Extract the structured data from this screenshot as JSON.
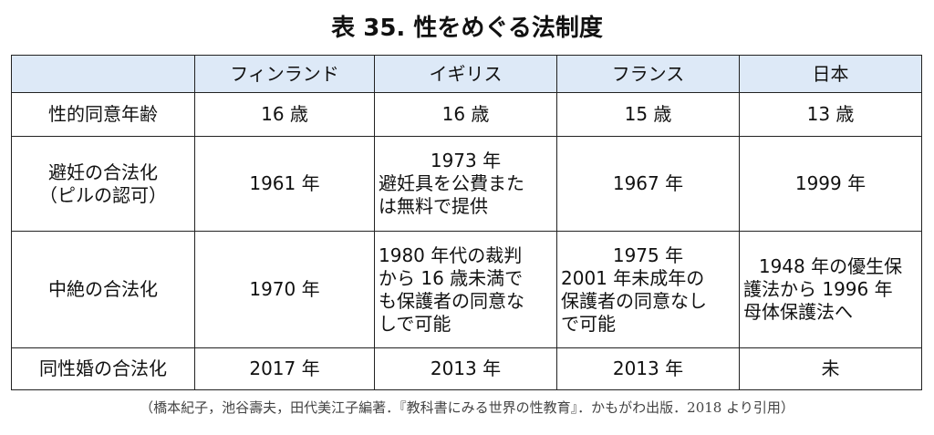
{
  "title": "表 35.  性をめぐる法制度",
  "table": {
    "columns": [
      "フィンランド",
      "イギリス",
      "フランス",
      "日本"
    ],
    "rows": [
      {
        "label": [
          "性的同意年齢"
        ],
        "cells": [
          [
            "16 歳"
          ],
          [
            "16 歳"
          ],
          [
            "15 歳"
          ],
          [
            "13 歳"
          ]
        ]
      },
      {
        "label": [
          "避妊の合法化",
          "（ピルの認可）"
        ],
        "cells": [
          [
            "1961 年"
          ],
          [
            "1973 年",
            "避妊具を公費また",
            "は無料で提供"
          ],
          [
            "1967 年"
          ],
          [
            "1999 年"
          ]
        ]
      },
      {
        "label": [
          "中絶の合法化"
        ],
        "cells": [
          [
            "1970 年"
          ],
          [
            "1980 年代の裁判",
            "から 16 歳未満で",
            "も保護者の同意な",
            "しで可能"
          ],
          [
            "1975 年",
            "2001 年未成年の",
            "保護者の同意なし",
            "で可能"
          ],
          [
            "1948 年の優生保",
            "護法から 1996 年",
            "母体保護法へ"
          ]
        ]
      },
      {
        "label": [
          "同性婚の合法化"
        ],
        "cells": [
          [
            "2017 年"
          ],
          [
            "2013 年"
          ],
          [
            "2013 年"
          ],
          [
            "未"
          ]
        ]
      }
    ]
  },
  "caption": "（橋本紀子，池谷壽夫，田代美江子編著．『教科書にみる世界の性教育』．かもがわ出版．2018 より引用）"
}
